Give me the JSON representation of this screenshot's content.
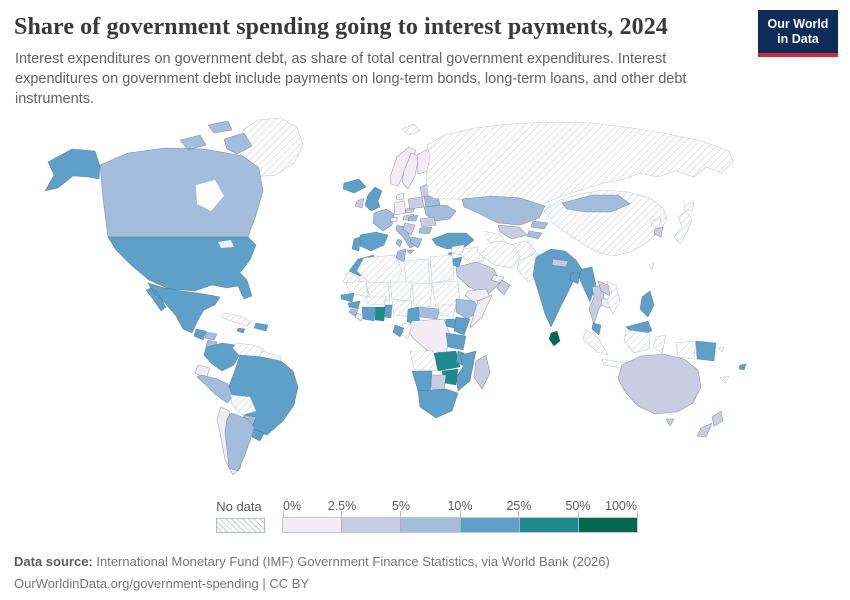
{
  "header": {
    "title": "Share of government spending going to interest payments, 2024",
    "subtitle": "Interest expenditures on government debt, as share of total central government expenditures. Interest expenditures on government debt include payments on long-term bonds, long-term loans, and other debt instruments."
  },
  "logo": {
    "line1": "Our World",
    "line2": "in Data",
    "bg_color": "#102d59",
    "accent_color": "#cb2d3f"
  },
  "legend": {
    "no_data_label": "No data",
    "tick_labels": [
      "0%",
      "2.5%",
      "5%",
      "10%",
      "25%",
      "50%",
      "100%"
    ],
    "bins": [
      {
        "label": "0%–2.5%",
        "color": "#f2edf5"
      },
      {
        "label": "2.5%–5%",
        "color": "#cbcbe2"
      },
      {
        "label": "5%–10%",
        "color": "#a5bddc"
      },
      {
        "label": "10%–25%",
        "color": "#5fa0c9"
      },
      {
        "label": "25%–50%",
        "color": "#1f8a8e"
      },
      {
        "label": "50%–100%",
        "color": "#02694f"
      }
    ]
  },
  "chart_data": {
    "type": "heatmap",
    "subtype": "choropleth-world-map",
    "title": "Share of government spending going to interest payments, 2024",
    "unit": "% of total central government expenditure",
    "bin_edges_percent": [
      0,
      2.5,
      5,
      10,
      25,
      50,
      100
    ],
    "no_data_style": "diagonal-hatch",
    "countries": [
      {
        "id": "greenland",
        "name": "Greenland",
        "bin": -1
      },
      {
        "id": "svalbard",
        "name": "Svalbard",
        "bin": -1
      },
      {
        "id": "canada",
        "name": "Canada",
        "bin": 2
      },
      {
        "id": "usa",
        "name": "United States",
        "bin": 3
      },
      {
        "id": "mexico",
        "name": "Mexico",
        "bin": 3
      },
      {
        "id": "guatemala",
        "name": "Guatemala",
        "bin": 3
      },
      {
        "id": "honduras",
        "name": "Honduras",
        "bin": 2
      },
      {
        "id": "nicaragua",
        "name": "Nicaragua",
        "bin": 2
      },
      {
        "id": "costa-rica",
        "name": "Costa Rica",
        "bin": -1
      },
      {
        "id": "panama",
        "name": "Panama",
        "bin": 3
      },
      {
        "id": "cuba",
        "name": "Cuba",
        "bin": -1
      },
      {
        "id": "dominican-republic",
        "name": "Dominican Republic",
        "bin": 3
      },
      {
        "id": "jamaica",
        "name": "Jamaica",
        "bin": 3
      },
      {
        "id": "colombia",
        "name": "Colombia",
        "bin": 3
      },
      {
        "id": "venezuela",
        "name": "Venezuela",
        "bin": -1
      },
      {
        "id": "guyanas",
        "name": "Guyana and Suriname",
        "bin": -1
      },
      {
        "id": "ecuador",
        "name": "Ecuador",
        "bin": 0
      },
      {
        "id": "peru",
        "name": "Peru",
        "bin": 2
      },
      {
        "id": "brazil",
        "name": "Brazil",
        "bin": 3
      },
      {
        "id": "bolivia",
        "name": "Bolivia",
        "bin": -1
      },
      {
        "id": "paraguay",
        "name": "Paraguay",
        "bin": 2
      },
      {
        "id": "chile",
        "name": "Chile",
        "bin": 0
      },
      {
        "id": "argentina",
        "name": "Argentina",
        "bin": 2
      },
      {
        "id": "uruguay",
        "name": "Uruguay",
        "bin": 3
      },
      {
        "id": "iceland",
        "name": "Iceland",
        "bin": 3
      },
      {
        "id": "norway",
        "name": "Norway",
        "bin": 0
      },
      {
        "id": "sweden",
        "name": "Sweden",
        "bin": 0
      },
      {
        "id": "finland",
        "name": "Finland",
        "bin": 0
      },
      {
        "id": "denmark",
        "name": "Denmark",
        "bin": 0
      },
      {
        "id": "uk",
        "name": "United Kingdom",
        "bin": 3
      },
      {
        "id": "ireland",
        "name": "Ireland",
        "bin": 1
      },
      {
        "id": "portugal",
        "name": "Portugal",
        "bin": 3
      },
      {
        "id": "spain",
        "name": "Spain",
        "bin": 3
      },
      {
        "id": "france",
        "name": "France",
        "bin": 2
      },
      {
        "id": "germany",
        "name": "Germany",
        "bin": 0
      },
      {
        "id": "switzerland",
        "name": "Switzerland",
        "bin": 0
      },
      {
        "id": "italy",
        "name": "Italy",
        "bin": 2
      },
      {
        "id": "austria",
        "name": "Austria",
        "bin": 1
      },
      {
        "id": "czechia",
        "name": "Czechia",
        "bin": 1
      },
      {
        "id": "poland",
        "name": "Poland",
        "bin": 1
      },
      {
        "id": "baltics",
        "name": "Baltic states",
        "bin": 1
      },
      {
        "id": "belarus",
        "name": "Belarus",
        "bin": 2
      },
      {
        "id": "ukraine",
        "name": "Ukraine",
        "bin": 2
      },
      {
        "id": "romania",
        "name": "Romania",
        "bin": 1
      },
      {
        "id": "hungary",
        "name": "Hungary",
        "bin": 2
      },
      {
        "id": "balkans",
        "name": "Western Balkans",
        "bin": 1
      },
      {
        "id": "greece",
        "name": "Greece",
        "bin": 2
      },
      {
        "id": "bulgaria",
        "name": "Bulgaria",
        "bin": 2
      },
      {
        "id": "turkey",
        "name": "Turkey",
        "bin": 3
      },
      {
        "id": "cyprus",
        "name": "Cyprus",
        "bin": 3
      },
      {
        "id": "russia",
        "name": "Russia",
        "bin": -1
      },
      {
        "id": "kazakhstan",
        "name": "Kazakhstan",
        "bin": 2
      },
      {
        "id": "uzbekistan",
        "name": "Uzbekistan",
        "bin": 1
      },
      {
        "id": "turkmenistan",
        "name": "Turkmenistan",
        "bin": -1
      },
      {
        "id": "kyrgyzstan",
        "name": "Kyrgyzstan",
        "bin": 2
      },
      {
        "id": "tajikistan",
        "name": "Tajikistan",
        "bin": 2
      },
      {
        "id": "afghanistan",
        "name": "Afghanistan",
        "bin": -1
      },
      {
        "id": "pakistan",
        "name": "Pakistan",
        "bin": -1
      },
      {
        "id": "syria",
        "name": "Syria",
        "bin": -1
      },
      {
        "id": "israel",
        "name": "Israel",
        "bin": 3
      },
      {
        "id": "jordan",
        "name": "Jordan",
        "bin": 3
      },
      {
        "id": "iraq",
        "name": "Iraq",
        "bin": -1
      },
      {
        "id": "saudi-arabia",
        "name": "Saudi Arabia",
        "bin": 1
      },
      {
        "id": "gulf-states",
        "name": "Qatar and UAE",
        "bin": 0
      },
      {
        "id": "oman",
        "name": "Oman",
        "bin": 1
      },
      {
        "id": "yemen",
        "name": "Yemen",
        "bin": 0
      },
      {
        "id": "iran",
        "name": "Iran",
        "bin": -1
      },
      {
        "id": "morocco",
        "name": "Morocco",
        "bin": 3
      },
      {
        "id": "western-sahara",
        "name": "Western Sahara",
        "bin": -1
      },
      {
        "id": "algeria",
        "name": "Algeria",
        "bin": -1
      },
      {
        "id": "tunisia",
        "name": "Tunisia",
        "bin": 2
      },
      {
        "id": "libya",
        "name": "Libya",
        "bin": -1
      },
      {
        "id": "egypt",
        "name": "Egypt",
        "bin": -1
      },
      {
        "id": "mauritania",
        "name": "Mauritania",
        "bin": -1
      },
      {
        "id": "mali",
        "name": "Mali",
        "bin": -1
      },
      {
        "id": "niger",
        "name": "Niger",
        "bin": -1
      },
      {
        "id": "chad",
        "name": "Chad",
        "bin": -1
      },
      {
        "id": "sudan",
        "name": "Sudan",
        "bin": -1
      },
      {
        "id": "senegal",
        "name": "Senegal",
        "bin": 3
      },
      {
        "id": "guinea",
        "name": "Guinea",
        "bin": 3
      },
      {
        "id": "sierra-leone",
        "name": "Sierra Leone",
        "bin": 2
      },
      {
        "id": "liberia",
        "name": "Liberia",
        "bin": 0
      },
      {
        "id": "ivory-coast",
        "name": "Cote d'Ivoire",
        "bin": 3
      },
      {
        "id": "ghana",
        "name": "Ghana",
        "bin": 4
      },
      {
        "id": "togo-benin",
        "name": "Togo and Benin",
        "bin": 3
      },
      {
        "id": "burkina-faso",
        "name": "Burkina Faso",
        "bin": -1
      },
      {
        "id": "nigeria",
        "name": "Nigeria",
        "bin": -1
      },
      {
        "id": "cameroon",
        "name": "Cameroon",
        "bin": 3
      },
      {
        "id": "car",
        "name": "Central African Republic",
        "bin": 2
      },
      {
        "id": "south-sudan",
        "name": "South Sudan",
        "bin": -1
      },
      {
        "id": "ethiopia",
        "name": "Ethiopia",
        "bin": 2
      },
      {
        "id": "somalia",
        "name": "Somalia",
        "bin": 0
      },
      {
        "id": "uganda",
        "name": "Uganda",
        "bin": 3
      },
      {
        "id": "kenya",
        "name": "Kenya",
        "bin": 3
      },
      {
        "id": "drc",
        "name": "Democratic Republic of Congo",
        "bin": 0
      },
      {
        "id": "congo",
        "name": "Congo",
        "bin": -1
      },
      {
        "id": "gabon",
        "name": "Gabon",
        "bin": 3
      },
      {
        "id": "tanzania",
        "name": "Tanzania",
        "bin": 3
      },
      {
        "id": "angola",
        "name": "Angola",
        "bin": -1
      },
      {
        "id": "zambia",
        "name": "Zambia",
        "bin": 4
      },
      {
        "id": "malawi",
        "name": "Malawi",
        "bin": 3
      },
      {
        "id": "mozambique",
        "name": "Mozambique",
        "bin": 3
      },
      {
        "id": "zimbabwe",
        "name": "Zimbabwe",
        "bin": 4
      },
      {
        "id": "botswana",
        "name": "Botswana",
        "bin": 1
      },
      {
        "id": "namibia",
        "name": "Namibia",
        "bin": 3
      },
      {
        "id": "south-africa",
        "name": "South Africa",
        "bin": 3
      },
      {
        "id": "madagascar",
        "name": "Madagascar",
        "bin": 1
      },
      {
        "id": "india",
        "name": "India",
        "bin": 3
      },
      {
        "id": "nepal",
        "name": "Nepal",
        "bin": 1
      },
      {
        "id": "bangladesh",
        "name": "Bangladesh",
        "bin": 3
      },
      {
        "id": "sri-lanka",
        "name": "Sri Lanka",
        "bin": 5
      },
      {
        "id": "myanmar",
        "name": "Myanmar",
        "bin": 3
      },
      {
        "id": "thailand",
        "name": "Thailand",
        "bin": 1
      },
      {
        "id": "laos",
        "name": "Laos",
        "bin": 1
      },
      {
        "id": "cambodia",
        "name": "Cambodia",
        "bin": 0
      },
      {
        "id": "vietnam",
        "name": "Vietnam",
        "bin": -1
      },
      {
        "id": "malaysia",
        "name": "Malaysia",
        "bin": 3
      },
      {
        "id": "indonesia",
        "name": "Indonesia",
        "bin": -1
      },
      {
        "id": "philippines",
        "name": "Philippines",
        "bin": 3
      },
      {
        "id": "png",
        "name": "Papua New Guinea",
        "bin": 3
      },
      {
        "id": "china",
        "name": "China",
        "bin": -1
      },
      {
        "id": "mongolia",
        "name": "Mongolia",
        "bin": 2
      },
      {
        "id": "north-korea",
        "name": "North Korea",
        "bin": -1
      },
      {
        "id": "south-korea",
        "name": "South Korea",
        "bin": 1
      },
      {
        "id": "japan",
        "name": "Japan",
        "bin": -1
      },
      {
        "id": "taiwan",
        "name": "Taiwan",
        "bin": -1
      },
      {
        "id": "australia",
        "name": "Australia",
        "bin": 1
      },
      {
        "id": "new-zealand",
        "name": "New Zealand",
        "bin": 1
      },
      {
        "id": "fiji",
        "name": "Fiji",
        "bin": 3
      },
      {
        "id": "new-caledonia",
        "name": "New Caledonia",
        "bin": -1
      },
      {
        "id": "solomon-islands",
        "name": "Solomon Islands",
        "bin": -1
      }
    ]
  },
  "footer": {
    "source_label": "Data source:",
    "source_text": "International Monetary Fund (IMF) Government Finance Statistics, via World Bank (2026)",
    "license_text": "OurWorldinData.org/government-spending | CC BY"
  }
}
